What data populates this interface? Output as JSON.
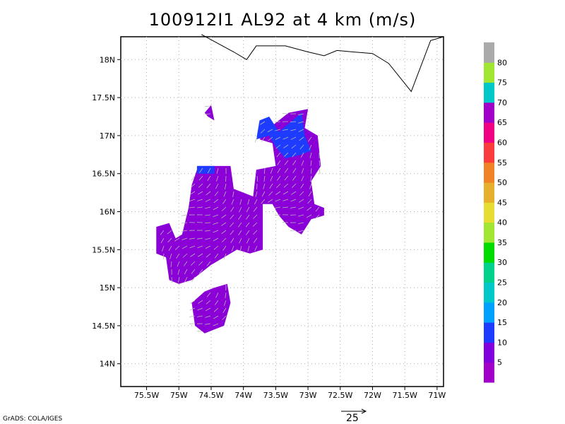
{
  "title": "100912I1 AL92 at 4 km (m/s)",
  "credit": "GrADS: COLA/IGES",
  "reference_vector_label": "25",
  "map": {
    "lon_range": [
      -75.9,
      -70.9
    ],
    "lat_range": [
      13.7,
      18.3
    ],
    "lon_ticks": [
      {
        "value": -75.5,
        "label": "75.5W"
      },
      {
        "value": -75,
        "label": "75W"
      },
      {
        "value": -74.5,
        "label": "74.5W"
      },
      {
        "value": -74,
        "label": "74W"
      },
      {
        "value": -73.5,
        "label": "73.5W"
      },
      {
        "value": -73,
        "label": "73W"
      },
      {
        "value": -72.5,
        "label": "72.5W"
      },
      {
        "value": -72,
        "label": "72W"
      },
      {
        "value": -71.5,
        "label": "71.5W"
      },
      {
        "value": -71,
        "label": "71W"
      }
    ],
    "lat_ticks": [
      {
        "value": 14,
        "label": "14N"
      },
      {
        "value": 14.5,
        "label": "14.5N"
      },
      {
        "value": 15,
        "label": "15N"
      },
      {
        "value": 15.5,
        "label": "15.5N"
      },
      {
        "value": 16,
        "label": "16N"
      },
      {
        "value": 16.5,
        "label": "16.5N"
      },
      {
        "value": 17,
        "label": "17N"
      },
      {
        "value": 17.5,
        "label": "17.5N"
      },
      {
        "value": 18,
        "label": "18N"
      }
    ],
    "grid": true,
    "coastline": [
      [
        -74.65,
        18.33
      ],
      [
        -74.15,
        18.1
      ],
      [
        -73.95,
        18.0
      ],
      [
        -73.8,
        18.18
      ],
      [
        -73.35,
        18.18
      ],
      [
        -73.0,
        18.1
      ],
      [
        -72.75,
        18.05
      ],
      [
        -72.55,
        18.12
      ],
      [
        -72.3,
        18.1
      ],
      [
        -72.0,
        18.08
      ],
      [
        -71.75,
        17.95
      ],
      [
        -71.4,
        17.58
      ],
      [
        -71.1,
        18.25
      ],
      [
        -70.9,
        18.3
      ]
    ]
  },
  "colorbar": {
    "labels": [
      "5",
      "10",
      "15",
      "20",
      "25",
      "30",
      "35",
      "40",
      "45",
      "50",
      "55",
      "60",
      "65",
      "70",
      "75",
      "80"
    ],
    "colors": [
      "#a000c8",
      "#8200dc",
      "#1e3cff",
      "#00a0ff",
      "#00c8c8",
      "#00d28c",
      "#00dc00",
      "#a0e632",
      "#e6dc32",
      "#e6af2d",
      "#f08228",
      "#fa3c3c",
      "#f00082",
      "#a000c8",
      "#00c8c8",
      "#a0e632",
      "#aaaaaa"
    ]
  },
  "chart_data": {
    "type": "wind field map",
    "variable": "wind speed at 4 km (m/s)",
    "color_key": {
      "purple": "0-10 m/s",
      "blue": "10-15 m/s"
    },
    "shaded_regions": [
      {
        "speed_class": "0-10",
        "polygon": [
          [
            -74.7,
            16.6
          ],
          [
            -74.2,
            16.6
          ],
          [
            -74.15,
            16.3
          ],
          [
            -73.85,
            16.2
          ],
          [
            -73.8,
            16.55
          ],
          [
            -73.5,
            16.6
          ],
          [
            -73.55,
            16.9
          ],
          [
            -73.75,
            16.95
          ],
          [
            -73.6,
            17.1
          ],
          [
            -73.3,
            17.3
          ],
          [
            -73.0,
            17.35
          ],
          [
            -73.05,
            17.1
          ],
          [
            -72.85,
            17.0
          ],
          [
            -72.8,
            16.6
          ],
          [
            -72.95,
            16.4
          ],
          [
            -72.9,
            16.1
          ],
          [
            -72.75,
            16.05
          ],
          [
            -72.75,
            15.95
          ],
          [
            -72.95,
            15.9
          ],
          [
            -73.1,
            15.7
          ],
          [
            -73.3,
            15.8
          ],
          [
            -73.45,
            15.95
          ],
          [
            -73.55,
            16.1
          ],
          [
            -73.7,
            16.1
          ],
          [
            -73.7,
            15.5
          ],
          [
            -73.9,
            15.45
          ],
          [
            -74.1,
            15.5
          ],
          [
            -74.3,
            15.4
          ],
          [
            -74.5,
            15.3
          ],
          [
            -74.8,
            15.1
          ],
          [
            -75.0,
            15.05
          ],
          [
            -75.15,
            15.1
          ],
          [
            -75.2,
            15.4
          ],
          [
            -75.35,
            15.45
          ],
          [
            -75.35,
            15.8
          ],
          [
            -75.15,
            15.85
          ],
          [
            -75.05,
            15.65
          ],
          [
            -74.95,
            15.7
          ],
          [
            -74.85,
            16.05
          ],
          [
            -74.8,
            16.35
          ]
        ]
      },
      {
        "speed_class": "0-10",
        "polygon": [
          [
            -74.45,
            15.0
          ],
          [
            -74.25,
            15.05
          ],
          [
            -74.2,
            14.8
          ],
          [
            -74.3,
            14.5
          ],
          [
            -74.45,
            14.45
          ],
          [
            -74.6,
            14.4
          ],
          [
            -74.75,
            14.5
          ],
          [
            -74.8,
            14.8
          ],
          [
            -74.6,
            14.95
          ]
        ]
      },
      {
        "speed_class": "0-10",
        "polygon": [
          [
            -74.5,
            17.4
          ],
          [
            -74.45,
            17.2
          ],
          [
            -74.55,
            17.25
          ],
          [
            -74.6,
            17.3
          ]
        ]
      },
      {
        "speed_class": "10-15",
        "polygon": [
          [
            -74.72,
            16.6
          ],
          [
            -74.45,
            16.6
          ],
          [
            -74.45,
            16.5
          ],
          [
            -74.72,
            16.5
          ]
        ]
      },
      {
        "speed_class": "10-15",
        "polygon": [
          [
            -73.45,
            17.05
          ],
          [
            -73.1,
            17.3
          ],
          [
            -73.05,
            17.0
          ],
          [
            -72.95,
            16.8
          ],
          [
            -73.1,
            16.75
          ],
          [
            -73.35,
            16.7
          ],
          [
            -73.5,
            16.85
          ],
          [
            -73.6,
            17.0
          ],
          [
            -73.8,
            16.95
          ],
          [
            -73.75,
            17.2
          ],
          [
            -73.6,
            17.25
          ]
        ]
      }
    ],
    "reference_vector_ms": 25
  }
}
